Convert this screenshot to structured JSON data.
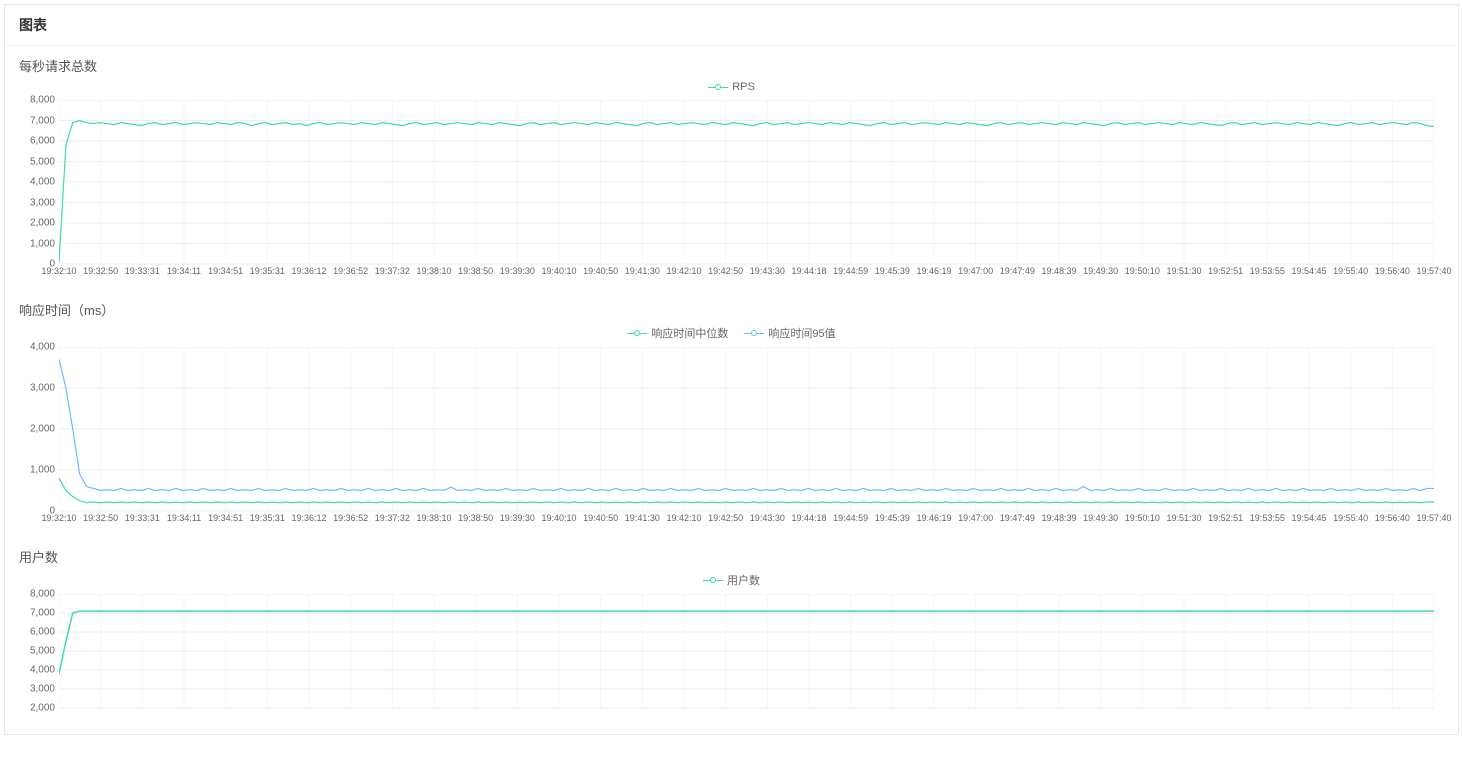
{
  "panel": {
    "title": "图表"
  },
  "xTicks": [
    "19:32:10",
    "19:32:50",
    "19:33:31",
    "19:34:11",
    "19:34:51",
    "19:35:31",
    "19:36:12",
    "19:36:52",
    "19:37:32",
    "19:38:10",
    "19:38:50",
    "19:39:30",
    "19:40:10",
    "19:40:50",
    "19:41:30",
    "19:42:10",
    "19:42:50",
    "19:43:30",
    "19:44:18",
    "19:44:59",
    "19:45:39",
    "19:46:19",
    "19:47:00",
    "19:47:49",
    "19:48:39",
    "19:49:30",
    "19:50:10",
    "19:51:30",
    "19:52:51",
    "19:53:55",
    "19:54:45",
    "19:55:40",
    "19:56:40",
    "19:57:40"
  ],
  "colors": {
    "teal": "#3dd9b3",
    "blue": "#6fb8ff",
    "grid": "#eeeeee",
    "gridv": "#f5f5f5",
    "text": "#666666",
    "background": "#ffffff"
  },
  "chart1": {
    "title": "每秒请求总数",
    "type": "line",
    "legend": [
      {
        "label": "RPS",
        "color": "#3dd9b3"
      }
    ],
    "yTicks": [
      0,
      1000,
      2000,
      3000,
      4000,
      5000,
      6000,
      7000,
      8000
    ],
    "yTickLabels": [
      "0",
      "1,000",
      "2,000",
      "3,000",
      "4,000",
      "5,000",
      "6,000",
      "7,000",
      "8,000"
    ],
    "ylim": [
      0,
      8000
    ],
    "yMultiplier": 1000,
    "series": [
      {
        "color": "#3dd9b3",
        "lineWidth": 1.2,
        "data": [
          0.05,
          5.8,
          6.9,
          7.0,
          6.9,
          6.85,
          6.9,
          6.85,
          6.8,
          6.9,
          6.85,
          6.8,
          6.75,
          6.85,
          6.9,
          6.8,
          6.85,
          6.9,
          6.8,
          6.85,
          6.9,
          6.85,
          6.8,
          6.9,
          6.85,
          6.8,
          6.9,
          6.85,
          6.75,
          6.85,
          6.9,
          6.8,
          6.85,
          6.9,
          6.8,
          6.85,
          6.75,
          6.85,
          6.9,
          6.8,
          6.85,
          6.9,
          6.85,
          6.8,
          6.9,
          6.85,
          6.8,
          6.9,
          6.85,
          6.8,
          6.75,
          6.85,
          6.9,
          6.8,
          6.85,
          6.9,
          6.8,
          6.85,
          6.9,
          6.85,
          6.8,
          6.9,
          6.85,
          6.8,
          6.9,
          6.85,
          6.8,
          6.75,
          6.85,
          6.9,
          6.8,
          6.85,
          6.9,
          6.8,
          6.85,
          6.9,
          6.85,
          6.8,
          6.9,
          6.85,
          6.8,
          6.9,
          6.85,
          6.8,
          6.75,
          6.85,
          6.9,
          6.8,
          6.85,
          6.9,
          6.8,
          6.85,
          6.9,
          6.85,
          6.8,
          6.9,
          6.85,
          6.8,
          6.9,
          6.85,
          6.8,
          6.75,
          6.85,
          6.9,
          6.8,
          6.85,
          6.9,
          6.8,
          6.85,
          6.9,
          6.85,
          6.8,
          6.9,
          6.85,
          6.8,
          6.9,
          6.85,
          6.8,
          6.75,
          6.85,
          6.9,
          6.8,
          6.85,
          6.9,
          6.8,
          6.85,
          6.9,
          6.85,
          6.8,
          6.9,
          6.85,
          6.8,
          6.9,
          6.85,
          6.8,
          6.75,
          6.85,
          6.9,
          6.8,
          6.85,
          6.9,
          6.8,
          6.85,
          6.9,
          6.85,
          6.8,
          6.9,
          6.85,
          6.8,
          6.9,
          6.85,
          6.8,
          6.75,
          6.85,
          6.9,
          6.8,
          6.85,
          6.9,
          6.8,
          6.85,
          6.9,
          6.85,
          6.8,
          6.9,
          6.85,
          6.8,
          6.9,
          6.85,
          6.8,
          6.75,
          6.85,
          6.9,
          6.8,
          6.85,
          6.9,
          6.8,
          6.85,
          6.9,
          6.85,
          6.8,
          6.9,
          6.85,
          6.8,
          6.9,
          6.85,
          6.8,
          6.75,
          6.85,
          6.9,
          6.8,
          6.85,
          6.9,
          6.8,
          6.85,
          6.9,
          6.85,
          6.8,
          6.9,
          6.85,
          6.75,
          6.7
        ]
      }
    ]
  },
  "chart2": {
    "title": "响应时间（ms）",
    "type": "line",
    "legend": [
      {
        "label": "响应时间中位数",
        "color": "#3dd9b3"
      },
      {
        "label": "响应时间95值",
        "color": "#6fb8ff"
      }
    ],
    "yTicks": [
      0,
      1000,
      2000,
      3000,
      4000
    ],
    "yTickLabels": [
      "0",
      "1,000",
      "2,000",
      "3,000",
      "4,000"
    ],
    "ylim": [
      0,
      4000
    ],
    "yMultiplier": 1000,
    "series": [
      {
        "color": "#6fb8ff",
        "lineWidth": 1.2,
        "data": [
          3.7,
          3.0,
          2.0,
          0.9,
          0.6,
          0.55,
          0.5,
          0.52,
          0.5,
          0.55,
          0.5,
          0.52,
          0.5,
          0.55,
          0.5,
          0.52,
          0.5,
          0.55,
          0.5,
          0.52,
          0.5,
          0.55,
          0.5,
          0.52,
          0.5,
          0.55,
          0.5,
          0.52,
          0.5,
          0.55,
          0.5,
          0.52,
          0.5,
          0.55,
          0.5,
          0.52,
          0.5,
          0.55,
          0.5,
          0.52,
          0.5,
          0.55,
          0.5,
          0.52,
          0.5,
          0.55,
          0.5,
          0.52,
          0.5,
          0.55,
          0.5,
          0.52,
          0.5,
          0.55,
          0.5,
          0.52,
          0.5,
          0.58,
          0.5,
          0.52,
          0.5,
          0.55,
          0.5,
          0.52,
          0.5,
          0.55,
          0.5,
          0.52,
          0.5,
          0.55,
          0.5,
          0.52,
          0.5,
          0.55,
          0.5,
          0.52,
          0.5,
          0.55,
          0.5,
          0.52,
          0.5,
          0.55,
          0.5,
          0.52,
          0.5,
          0.55,
          0.5,
          0.52,
          0.5,
          0.55,
          0.5,
          0.52,
          0.5,
          0.55,
          0.5,
          0.52,
          0.5,
          0.55,
          0.5,
          0.52,
          0.5,
          0.55,
          0.5,
          0.52,
          0.5,
          0.55,
          0.5,
          0.52,
          0.5,
          0.55,
          0.5,
          0.52,
          0.5,
          0.55,
          0.5,
          0.52,
          0.5,
          0.55,
          0.5,
          0.52,
          0.5,
          0.55,
          0.5,
          0.52,
          0.5,
          0.55,
          0.5,
          0.52,
          0.5,
          0.55,
          0.5,
          0.52,
          0.5,
          0.55,
          0.5,
          0.52,
          0.5,
          0.55,
          0.5,
          0.52,
          0.5,
          0.55,
          0.5,
          0.52,
          0.5,
          0.55,
          0.5,
          0.52,
          0.5,
          0.6,
          0.5,
          0.52,
          0.5,
          0.55,
          0.5,
          0.52,
          0.5,
          0.55,
          0.5,
          0.52,
          0.5,
          0.55,
          0.5,
          0.52,
          0.5,
          0.55,
          0.5,
          0.52,
          0.5,
          0.55,
          0.5,
          0.52,
          0.5,
          0.55,
          0.5,
          0.52,
          0.5,
          0.55,
          0.5,
          0.52,
          0.5,
          0.55,
          0.5,
          0.52,
          0.5,
          0.55,
          0.5,
          0.52,
          0.5,
          0.55,
          0.5,
          0.52,
          0.5,
          0.55,
          0.5,
          0.52,
          0.5,
          0.55,
          0.5,
          0.55,
          0.55
        ]
      },
      {
        "color": "#3dd9b3",
        "lineWidth": 1.2,
        "data": [
          0.8,
          0.5,
          0.35,
          0.25,
          0.2,
          0.22,
          0.2,
          0.22,
          0.2,
          0.22,
          0.2,
          0.22,
          0.2,
          0.22,
          0.2,
          0.22,
          0.2,
          0.22,
          0.2,
          0.22,
          0.2,
          0.22,
          0.2,
          0.22,
          0.2,
          0.22,
          0.2,
          0.22,
          0.2,
          0.22,
          0.2,
          0.22,
          0.2,
          0.22,
          0.2,
          0.22,
          0.2,
          0.22,
          0.2,
          0.22,
          0.2,
          0.22,
          0.2,
          0.22,
          0.2,
          0.22,
          0.2,
          0.22,
          0.2,
          0.22,
          0.2,
          0.22,
          0.2,
          0.22,
          0.2,
          0.22,
          0.2,
          0.22,
          0.2,
          0.22,
          0.2,
          0.22,
          0.2,
          0.22,
          0.2,
          0.22,
          0.2,
          0.22,
          0.2,
          0.22,
          0.2,
          0.22,
          0.2,
          0.22,
          0.2,
          0.22,
          0.2,
          0.22,
          0.2,
          0.22,
          0.2,
          0.22,
          0.2,
          0.22,
          0.2,
          0.22,
          0.2,
          0.22,
          0.2,
          0.22,
          0.2,
          0.22,
          0.2,
          0.22,
          0.2,
          0.22,
          0.2,
          0.22,
          0.2,
          0.22,
          0.2,
          0.22,
          0.2,
          0.22,
          0.2,
          0.22,
          0.2,
          0.22,
          0.2,
          0.22,
          0.2,
          0.22,
          0.2,
          0.22,
          0.2,
          0.22,
          0.2,
          0.22,
          0.2,
          0.22,
          0.2,
          0.22,
          0.2,
          0.22,
          0.2,
          0.22,
          0.2,
          0.22,
          0.2,
          0.22,
          0.2,
          0.22,
          0.2,
          0.22,
          0.2,
          0.22,
          0.2,
          0.22,
          0.2,
          0.22,
          0.2,
          0.22,
          0.2,
          0.22,
          0.2,
          0.22,
          0.2,
          0.22,
          0.2,
          0.22,
          0.2,
          0.22,
          0.2,
          0.22,
          0.2,
          0.22,
          0.2,
          0.22,
          0.2,
          0.22,
          0.2,
          0.22,
          0.2,
          0.22,
          0.2,
          0.22,
          0.2,
          0.22,
          0.2,
          0.22,
          0.2,
          0.22,
          0.2,
          0.22,
          0.2,
          0.22,
          0.2,
          0.22,
          0.2,
          0.22,
          0.2,
          0.22,
          0.2,
          0.22,
          0.2,
          0.22,
          0.2,
          0.22,
          0.2,
          0.22,
          0.2,
          0.22,
          0.2,
          0.22,
          0.2,
          0.22,
          0.2,
          0.22,
          0.2,
          0.22,
          0.22
        ]
      }
    ]
  },
  "chart3": {
    "title": "用户数",
    "type": "line",
    "legend": [
      {
        "label": "用户数",
        "color": "#3dd9b3"
      }
    ],
    "yTicks": [
      2000,
      3000,
      4000,
      5000,
      6000,
      7000,
      8000
    ],
    "yTickLabels": [
      "2,000",
      "3,000",
      "4,000",
      "5,000",
      "6,000",
      "7,000",
      "8,000"
    ],
    "ylim": [
      2000,
      8000
    ],
    "yMultiplier": 1,
    "series": [
      {
        "color": "#3dd9b3",
        "lineWidth": 1.5,
        "data": [
          3800,
          5500,
          7000,
          7100,
          7100,
          7100,
          7100,
          7100,
          7100,
          7100,
          7100,
          7100,
          7100,
          7100,
          7100,
          7100,
          7100,
          7100,
          7100,
          7100,
          7100,
          7100,
          7100,
          7100,
          7100,
          7100,
          7100,
          7100,
          7100,
          7100,
          7100,
          7100,
          7100,
          7100,
          7100,
          7100,
          7100,
          7100,
          7100,
          7100,
          7100,
          7100,
          7100,
          7100,
          7100,
          7100,
          7100,
          7100,
          7100,
          7100,
          7100,
          7100,
          7100,
          7100,
          7100,
          7100,
          7100,
          7100,
          7100,
          7100,
          7100,
          7100,
          7100,
          7100,
          7100,
          7100,
          7100,
          7100,
          7100,
          7100,
          7100,
          7100,
          7100,
          7100,
          7100,
          7100,
          7100,
          7100,
          7100,
          7100,
          7100,
          7100,
          7100,
          7100,
          7100,
          7100,
          7100,
          7100,
          7100,
          7100,
          7100,
          7100,
          7100,
          7100,
          7100,
          7100,
          7100,
          7100,
          7100,
          7100,
          7100,
          7100,
          7100,
          7100,
          7100,
          7100,
          7100,
          7100,
          7100,
          7100,
          7100,
          7100,
          7100,
          7100,
          7100,
          7100,
          7100,
          7100,
          7100,
          7100,
          7100,
          7100,
          7100,
          7100,
          7100,
          7100,
          7100,
          7100,
          7100,
          7100,
          7100,
          7100,
          7100,
          7100,
          7100,
          7100,
          7100,
          7100,
          7100,
          7100,
          7100,
          7100,
          7100,
          7100,
          7100,
          7100,
          7100,
          7100,
          7100,
          7100,
          7100,
          7100,
          7100,
          7100,
          7100,
          7100,
          7100,
          7100,
          7100,
          7100,
          7100,
          7100,
          7100,
          7100,
          7100,
          7100,
          7100,
          7100,
          7100,
          7100,
          7100,
          7100,
          7100,
          7100,
          7100,
          7100,
          7100,
          7100,
          7100,
          7100,
          7100,
          7100,
          7100,
          7100,
          7100,
          7100,
          7100,
          7100,
          7100,
          7100,
          7100,
          7100,
          7100,
          7100,
          7100,
          7100,
          7100,
          7100,
          7100,
          7100,
          7100
        ]
      }
    ]
  }
}
